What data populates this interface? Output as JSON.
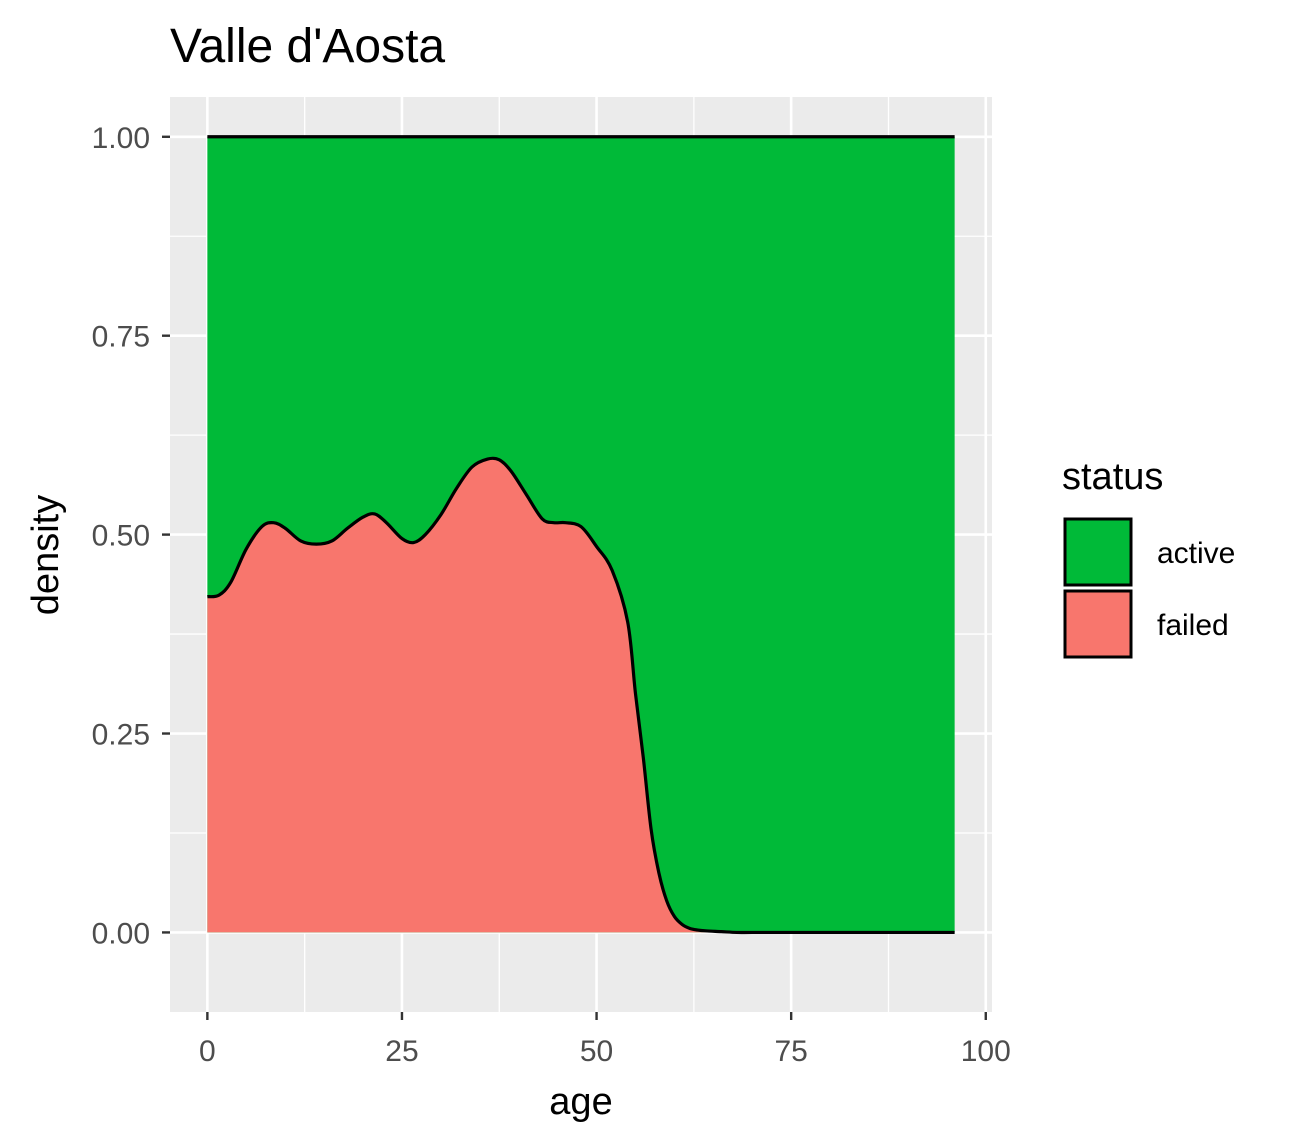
{
  "chart_data": {
    "type": "area",
    "stacking": "fill",
    "title": "Valle d'Aosta",
    "xlabel": "age",
    "ylabel": "density",
    "xlim": [
      -4.8,
      100.8
    ],
    "ylim": [
      -0.1,
      1.05
    ],
    "x_ticks": [
      0,
      25,
      50,
      75,
      100
    ],
    "x_tick_labels": [
      "0",
      "25",
      "50",
      "75",
      "100"
    ],
    "y_ticks": [
      0,
      0.25,
      0.5,
      0.75,
      1
    ],
    "y_tick_labels": [
      "0.00",
      "0.25",
      "0.50",
      "0.75",
      "1.00"
    ],
    "grid": true,
    "background": "#ebebeb",
    "legend": {
      "title": "status",
      "position": "right",
      "entries": [
        {
          "label": "active",
          "color": "#00ba38"
        },
        {
          "label": "failed",
          "color": "#f8766d"
        }
      ]
    },
    "series": [
      {
        "name": "failed",
        "color": "#f8766d",
        "x": [
          0,
          1.5,
          3,
          5,
          7,
          8.5,
          10,
          12,
          14,
          16,
          18,
          20,
          21.5,
          23,
          25,
          26.5,
          28,
          30,
          32,
          34,
          36,
          37.5,
          39,
          41,
          43,
          44.5,
          46,
          48,
          50,
          52,
          54,
          55,
          56,
          57,
          58,
          59,
          60,
          61,
          62,
          63,
          64,
          66,
          68,
          70,
          75,
          80,
          85,
          90,
          96
        ],
        "y": [
          0.422,
          0.424,
          0.44,
          0.482,
          0.51,
          0.515,
          0.508,
          0.492,
          0.488,
          0.492,
          0.508,
          0.522,
          0.526,
          0.515,
          0.495,
          0.49,
          0.5,
          0.525,
          0.558,
          0.585,
          0.595,
          0.594,
          0.58,
          0.55,
          0.52,
          0.515,
          0.515,
          0.51,
          0.485,
          0.455,
          0.39,
          0.3,
          0.22,
          0.13,
          0.075,
          0.04,
          0.02,
          0.01,
          0.005,
          0.003,
          0.002,
          0.001,
          0,
          0,
          0,
          0,
          0,
          0,
          0
        ]
      },
      {
        "name": "active",
        "color": "#00ba38",
        "x": [
          0,
          96
        ],
        "y_top": [
          1,
          1
        ]
      }
    ]
  }
}
